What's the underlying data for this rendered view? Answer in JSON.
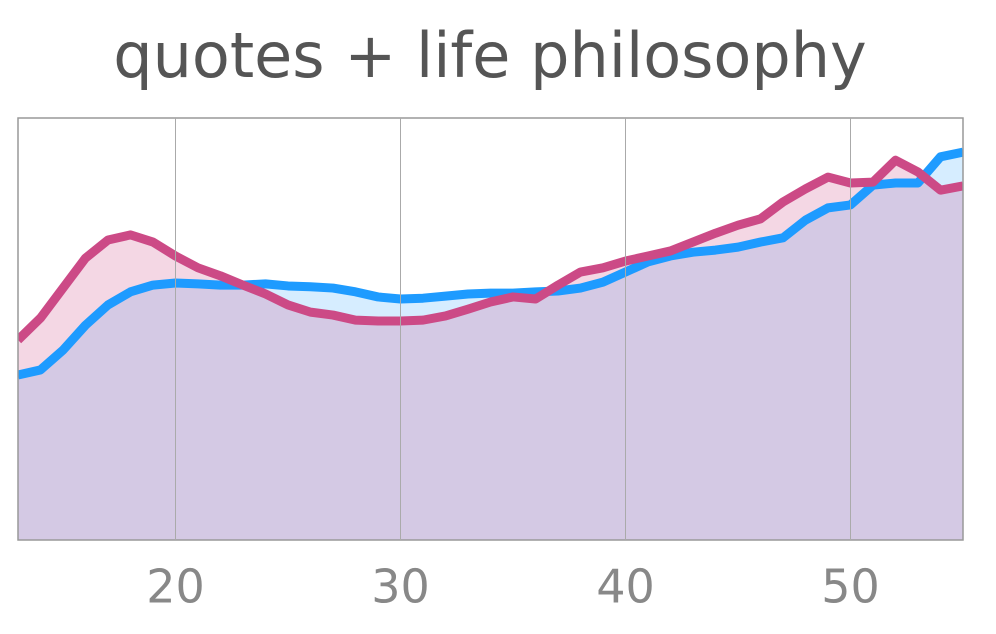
{
  "chart_data": {
    "type": "line",
    "title": "quotes + life philosophy",
    "x": [
      13,
      14,
      15,
      16,
      17,
      18,
      19,
      20,
      21,
      22,
      23,
      24,
      25,
      26,
      27,
      28,
      29,
      30,
      31,
      32,
      33,
      34,
      35,
      36,
      37,
      38,
      39,
      40,
      41,
      42,
      43,
      44,
      45,
      46,
      47,
      48,
      49,
      50,
      51,
      52,
      53,
      54,
      55
    ],
    "series": [
      {
        "color": "#1e9bff",
        "values": [
          0.391,
          0.403,
          0.45,
          0.509,
          0.557,
          0.588,
          0.604,
          0.609,
          0.607,
          0.604,
          0.604,
          0.607,
          0.602,
          0.6,
          0.597,
          0.588,
          0.576,
          0.571,
          0.573,
          0.578,
          0.583,
          0.585,
          0.585,
          0.588,
          0.59,
          0.597,
          0.611,
          0.635,
          0.659,
          0.673,
          0.682,
          0.687,
          0.694,
          0.706,
          0.716,
          0.758,
          0.787,
          0.794,
          0.841,
          0.846,
          0.846,
          0.908,
          0.919
        ]
      },
      {
        "color": "#cc4a86",
        "values": [
          0.474,
          0.526,
          0.597,
          0.668,
          0.711,
          0.723,
          0.706,
          0.673,
          0.645,
          0.626,
          0.604,
          0.583,
          0.557,
          0.54,
          0.533,
          0.521,
          0.519,
          0.519,
          0.521,
          0.531,
          0.547,
          0.564,
          0.576,
          0.571,
          0.604,
          0.635,
          0.645,
          0.661,
          0.673,
          0.685,
          0.706,
          0.727,
          0.746,
          0.761,
          0.801,
          0.832,
          0.86,
          0.846,
          0.848,
          0.9,
          0.872,
          0.829,
          0.839
        ]
      }
    ],
    "xlim": [
      13,
      55
    ],
    "xticks": [
      20,
      30,
      40,
      50
    ],
    "ylim": [
      0,
      1
    ],
    "grid": true,
    "filled": true
  }
}
